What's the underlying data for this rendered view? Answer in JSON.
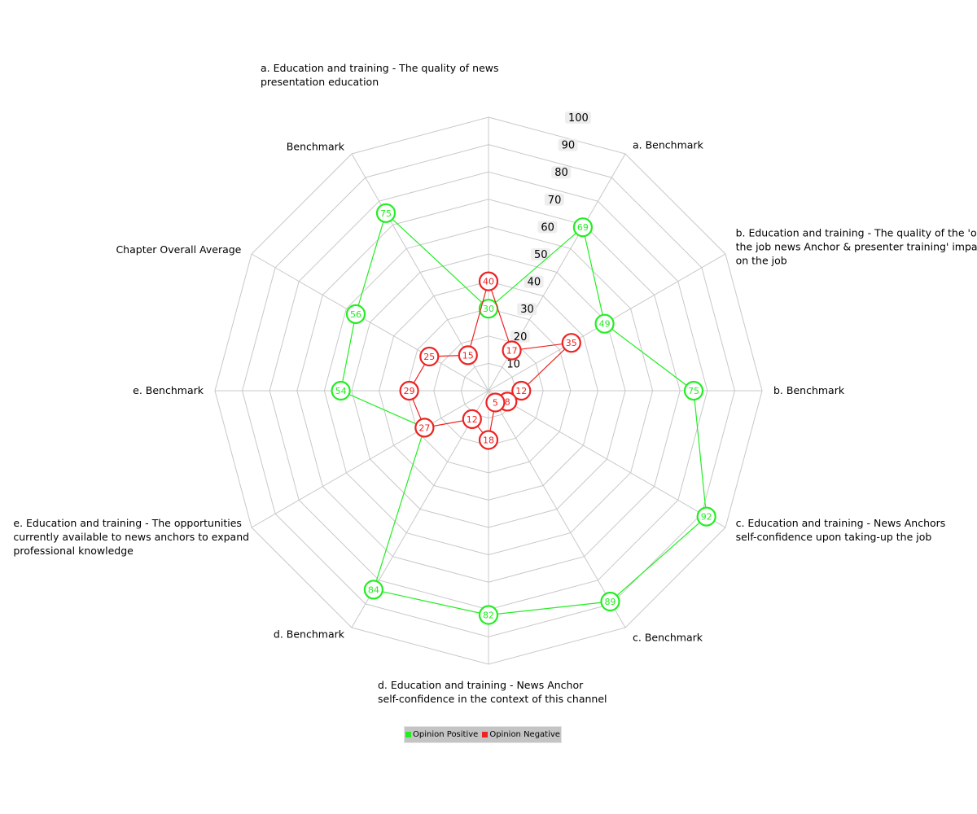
{
  "chart_data": {
    "type": "radar",
    "title": "",
    "axes": [
      [
        "a. Education and training - The quality of news",
        "presentation  education"
      ],
      [
        "a. Benchmark"
      ],
      [
        "b. Education and training - The quality of the 'on",
        "the job news Anchor & presenter training' imparted",
        "on the job"
      ],
      [
        "b. Benchmark"
      ],
      [
        "c. Education and training - News Anchors",
        "self-confidence upon taking-up the job"
      ],
      [
        "c. Benchmark"
      ],
      [
        "d. Education and training - News Anchor",
        "self-confidence in the context of this channel"
      ],
      [
        "d. Benchmark"
      ],
      [
        "e. Education and training - The opportunities",
        "currently available to news anchors to expand",
        "professional knowledge"
      ],
      [
        "e. Benchmark"
      ],
      [
        "Chapter Overall Average"
      ],
      [
        "Benchmark"
      ]
    ],
    "rmax": 100,
    "ring_ticks": [
      10,
      20,
      30,
      40,
      50,
      60,
      70,
      80,
      90,
      100
    ],
    "series": [
      {
        "name": "Opinion Positive",
        "color": "#22ee22",
        "values": [
          30,
          69,
          49,
          75,
          92,
          89,
          82,
          84,
          27,
          54,
          56,
          75
        ]
      },
      {
        "name": "Opinion Negative",
        "color": "#ee2222",
        "values": [
          40,
          17,
          35,
          12,
          8,
          5,
          18,
          12,
          27,
          29,
          25,
          15
        ]
      }
    ],
    "legend_position": "bottom"
  }
}
